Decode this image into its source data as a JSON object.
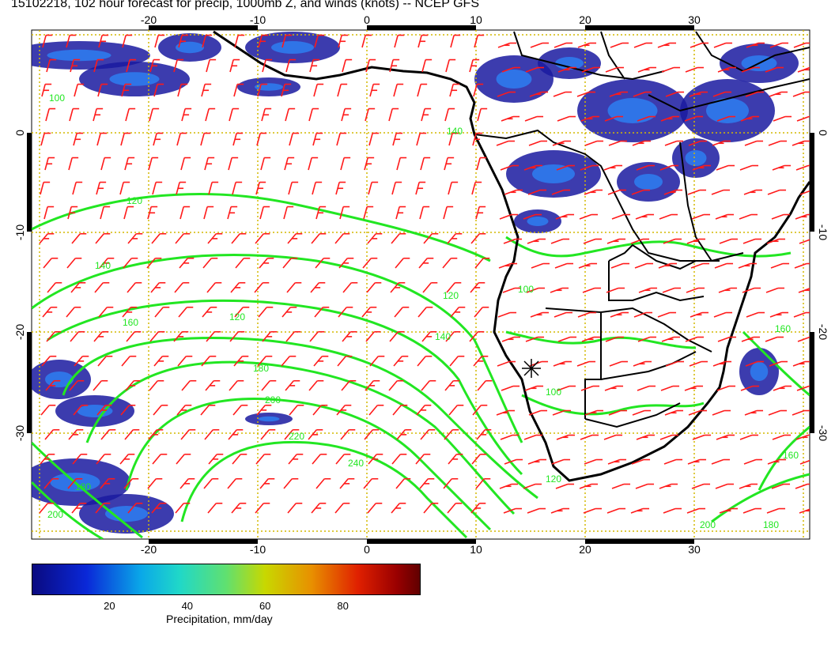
{
  "title": "15102218, 102 hour forecast for precip, 1000mb Z, and winds (knots) -- NCEP GFS",
  "map": {
    "lon_ticks": [
      "-20",
      "-10",
      "0",
      "10",
      "20",
      "30"
    ],
    "lat_ticks": [
      "0",
      "-10",
      "-20",
      "-30"
    ],
    "contour_labels": [
      "100",
      "120",
      "140",
      "160",
      "180",
      "200",
      "220",
      "240",
      "120",
      "140",
      "160",
      "180",
      "200",
      "120",
      "140",
      "160",
      "180",
      "200",
      "100",
      "100",
      "120"
    ],
    "colors": {
      "land_outline": "#000000",
      "contour": "#22e622",
      "wind_barb": "#ff1a1a",
      "grid": "#d4b800",
      "precip_low": "#1a1aa0"
    }
  },
  "colorbar": {
    "labels": [
      "20",
      "40",
      "60",
      "80"
    ],
    "label_values": [
      20,
      40,
      60,
      80
    ],
    "min": 0,
    "max": 100,
    "title": "Precipitation, mm/day"
  }
}
